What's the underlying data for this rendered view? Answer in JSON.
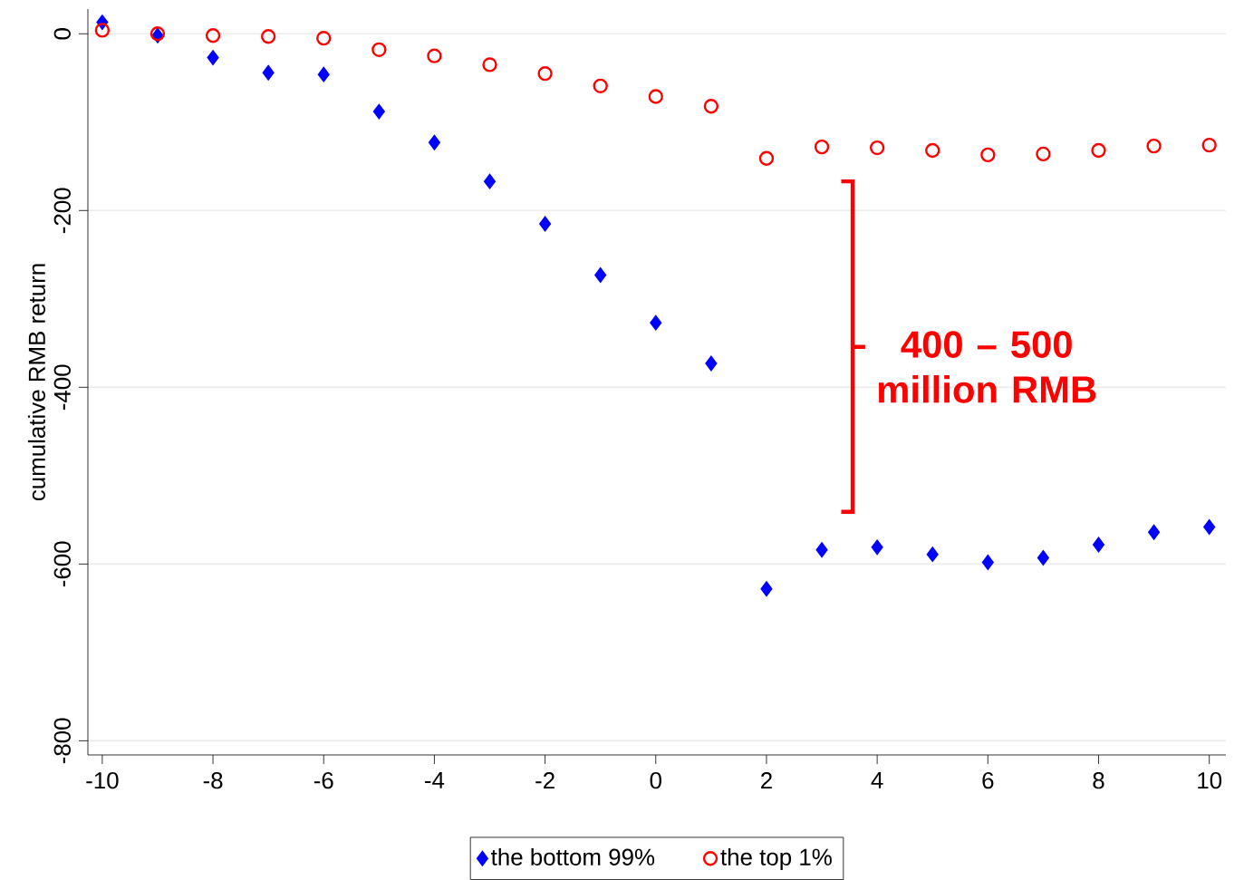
{
  "chart_data": {
    "type": "scatter",
    "ylabel": "cumulative RMB return",
    "x": [
      -10,
      -9,
      -8,
      -7,
      -6,
      -5,
      -4,
      -3,
      -2,
      -1,
      0,
      1,
      2,
      3,
      4,
      5,
      6,
      7,
      8,
      9,
      10
    ],
    "series": [
      {
        "name": "the bottom 99%",
        "color": "#0000ff",
        "marker": "diamond",
        "values": [
          13,
          -2,
          -27,
          -44,
          -46,
          -88,
          -123,
          -167,
          -215,
          -273,
          -327,
          -373,
          -628,
          -584,
          -581,
          -589,
          -598,
          -593,
          -578,
          -564,
          -558
        ]
      },
      {
        "name": "the top 1%",
        "color": "#ff0000",
        "marker": "circle",
        "values": [
          4,
          0,
          -2,
          -3,
          -5,
          -18,
          -25,
          -35,
          -45,
          -59,
          -71,
          -82,
          -141,
          -128,
          -129,
          -132,
          -137,
          -136,
          -132,
          -127,
          -126
        ]
      }
    ],
    "xlim": [
      -10.26,
      10.3
    ],
    "ylim": [
      -816,
      28
    ],
    "xticks": [
      -10,
      -8,
      -6,
      -4,
      -2,
      0,
      2,
      4,
      6,
      8,
      10
    ],
    "yticks": [
      -800,
      -600,
      -400,
      -200,
      0
    ],
    "grid": "y",
    "legend": "bottom",
    "annotations": [
      "400 – 500 million RMB"
    ]
  }
}
